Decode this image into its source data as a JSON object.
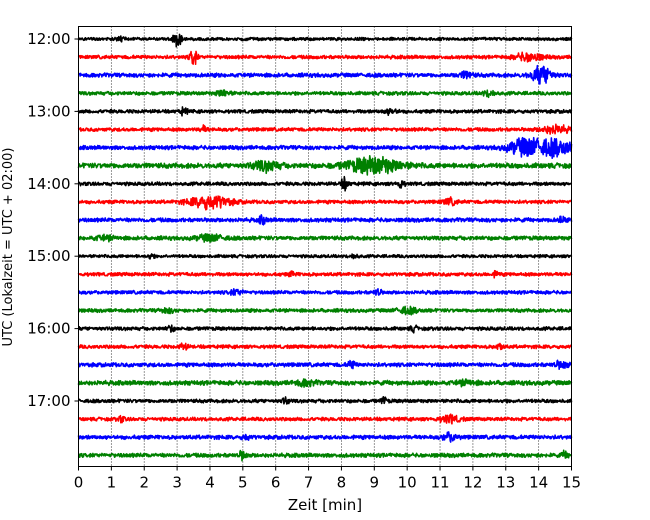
{
  "chart_data": {
    "type": "line",
    "title": "",
    "xlabel": "Zeit  [min]",
    "ylabel": "UTC (Lokalzeit = UTC + 02:00)",
    "xlim": [
      0,
      15
    ],
    "x_ticks": [
      "0",
      "1",
      "2",
      "3",
      "4",
      "5",
      "6",
      "7",
      "8",
      "9",
      "10",
      "11",
      "12",
      "13",
      "14",
      "15"
    ],
    "y_ticks": [
      {
        "label": "12:00",
        "row": 0
      },
      {
        "label": "13:00",
        "row": 4
      },
      {
        "label": "14:00",
        "row": 8
      },
      {
        "label": "15:00",
        "row": 12
      },
      {
        "label": "16:00",
        "row": 16
      },
      {
        "label": "17:00",
        "row": 20
      }
    ],
    "row_minutes": 15,
    "start_time": "12:00",
    "end_time": "18:00",
    "colors": [
      "#000000",
      "#ff0000",
      "#0000ff",
      "#008000"
    ],
    "grid": "vertical-dotted",
    "series": [
      {
        "start": "12:00",
        "base": 0.3,
        "events": [
          {
            "x": 3.0,
            "amp": 1.2,
            "w": 0.15
          },
          {
            "x": 1.3,
            "amp": 0.6,
            "w": 0.1
          }
        ]
      },
      {
        "start": "12:15",
        "base": 0.35,
        "events": [
          {
            "x": 3.5,
            "amp": 1.8,
            "w": 0.1
          },
          {
            "x": 13.7,
            "amp": 0.8,
            "w": 0.4
          }
        ]
      },
      {
        "start": "12:30",
        "base": 0.4,
        "events": [
          {
            "x": 14.1,
            "amp": 1.8,
            "w": 0.3
          },
          {
            "x": 11.8,
            "amp": 0.6,
            "w": 0.2
          }
        ]
      },
      {
        "start": "12:45",
        "base": 0.35,
        "events": [
          {
            "x": 4.4,
            "amp": 0.6,
            "w": 0.2
          },
          {
            "x": 12.5,
            "amp": 0.5,
            "w": 0.2
          }
        ]
      },
      {
        "start": "13:00",
        "base": 0.35,
        "events": [
          {
            "x": 3.2,
            "amp": 0.7,
            "w": 0.1
          },
          {
            "x": 9.5,
            "amp": 0.5,
            "w": 0.2
          }
        ]
      },
      {
        "start": "13:15",
        "base": 0.35,
        "events": [
          {
            "x": 14.5,
            "amp": 0.8,
            "w": 0.4
          },
          {
            "x": 3.8,
            "amp": 0.6,
            "w": 0.1
          }
        ]
      },
      {
        "start": "13:30",
        "base": 0.4,
        "events": [
          {
            "x": 13.6,
            "amp": 1.8,
            "w": 0.5
          },
          {
            "x": 14.5,
            "amp": 1.6,
            "w": 0.5
          }
        ]
      },
      {
        "start": "13:45",
        "base": 0.5,
        "events": [
          {
            "x": 9.0,
            "amp": 1.6,
            "w": 0.8
          },
          {
            "x": 5.7,
            "amp": 0.9,
            "w": 0.4
          }
        ]
      },
      {
        "start": "14:00",
        "base": 0.35,
        "events": [
          {
            "x": 8.1,
            "amp": 1.2,
            "w": 0.1
          },
          {
            "x": 9.8,
            "amp": 0.8,
            "w": 0.1
          }
        ]
      },
      {
        "start": "14:15",
        "base": 0.35,
        "events": [
          {
            "x": 4.0,
            "amp": 1.3,
            "w": 0.6
          },
          {
            "x": 11.3,
            "amp": 0.6,
            "w": 0.2
          }
        ]
      },
      {
        "start": "14:30",
        "base": 0.4,
        "events": [
          {
            "x": 5.6,
            "amp": 0.8,
            "w": 0.1
          },
          {
            "x": 14.7,
            "amp": 0.6,
            "w": 0.1
          }
        ]
      },
      {
        "start": "14:45",
        "base": 0.4,
        "events": [
          {
            "x": 4.0,
            "amp": 0.6,
            "w": 0.4
          },
          {
            "x": 0.8,
            "amp": 0.4,
            "w": 0.3
          }
        ]
      },
      {
        "start": "15:00",
        "base": 0.3,
        "events": [
          {
            "x": 8.4,
            "amp": 0.5,
            "w": 0.1
          },
          {
            "x": 2.2,
            "amp": 0.4,
            "w": 0.1
          }
        ]
      },
      {
        "start": "15:15",
        "base": 0.35,
        "events": [
          {
            "x": 12.7,
            "amp": 0.5,
            "w": 0.1
          },
          {
            "x": 6.5,
            "amp": 0.4,
            "w": 0.1
          }
        ]
      },
      {
        "start": "15:30",
        "base": 0.35,
        "events": [
          {
            "x": 9.1,
            "amp": 0.7,
            "w": 0.1
          },
          {
            "x": 4.8,
            "amp": 0.5,
            "w": 0.2
          }
        ]
      },
      {
        "start": "15:45",
        "base": 0.35,
        "events": [
          {
            "x": 10.0,
            "amp": 0.6,
            "w": 0.3
          },
          {
            "x": 2.7,
            "amp": 0.4,
            "w": 0.2
          }
        ]
      },
      {
        "start": "16:00",
        "base": 0.35,
        "events": [
          {
            "x": 2.8,
            "amp": 0.6,
            "w": 0.1
          },
          {
            "x": 10.2,
            "amp": 0.5,
            "w": 0.1
          }
        ]
      },
      {
        "start": "16:15",
        "base": 0.35,
        "events": [
          {
            "x": 3.2,
            "amp": 0.8,
            "w": 0.1
          },
          {
            "x": 12.8,
            "amp": 0.6,
            "w": 0.1
          }
        ]
      },
      {
        "start": "16:30",
        "base": 0.4,
        "events": [
          {
            "x": 8.3,
            "amp": 0.8,
            "w": 0.1
          },
          {
            "x": 14.7,
            "amp": 0.7,
            "w": 0.2
          }
        ]
      },
      {
        "start": "16:45",
        "base": 0.45,
        "events": [
          {
            "x": 6.9,
            "amp": 0.5,
            "w": 0.3
          },
          {
            "x": 11.8,
            "amp": 0.4,
            "w": 0.3
          }
        ]
      },
      {
        "start": "17:00",
        "base": 0.35,
        "events": [
          {
            "x": 6.3,
            "amp": 0.6,
            "w": 0.1
          },
          {
            "x": 9.3,
            "amp": 0.6,
            "w": 0.1
          }
        ]
      },
      {
        "start": "17:15",
        "base": 0.35,
        "events": [
          {
            "x": 11.3,
            "amp": 0.7,
            "w": 0.3
          },
          {
            "x": 1.3,
            "amp": 0.5,
            "w": 0.1
          }
        ]
      },
      {
        "start": "17:30",
        "base": 0.4,
        "events": [
          {
            "x": 11.3,
            "amp": 0.8,
            "w": 0.2
          },
          {
            "x": 5.1,
            "amp": 0.5,
            "w": 0.1
          }
        ]
      },
      {
        "start": "17:45",
        "base": 0.4,
        "events": [
          {
            "x": 5.0,
            "amp": 0.9,
            "w": 0.1
          },
          {
            "x": 14.8,
            "amp": 0.6,
            "w": 0.1
          }
        ]
      }
    ]
  }
}
